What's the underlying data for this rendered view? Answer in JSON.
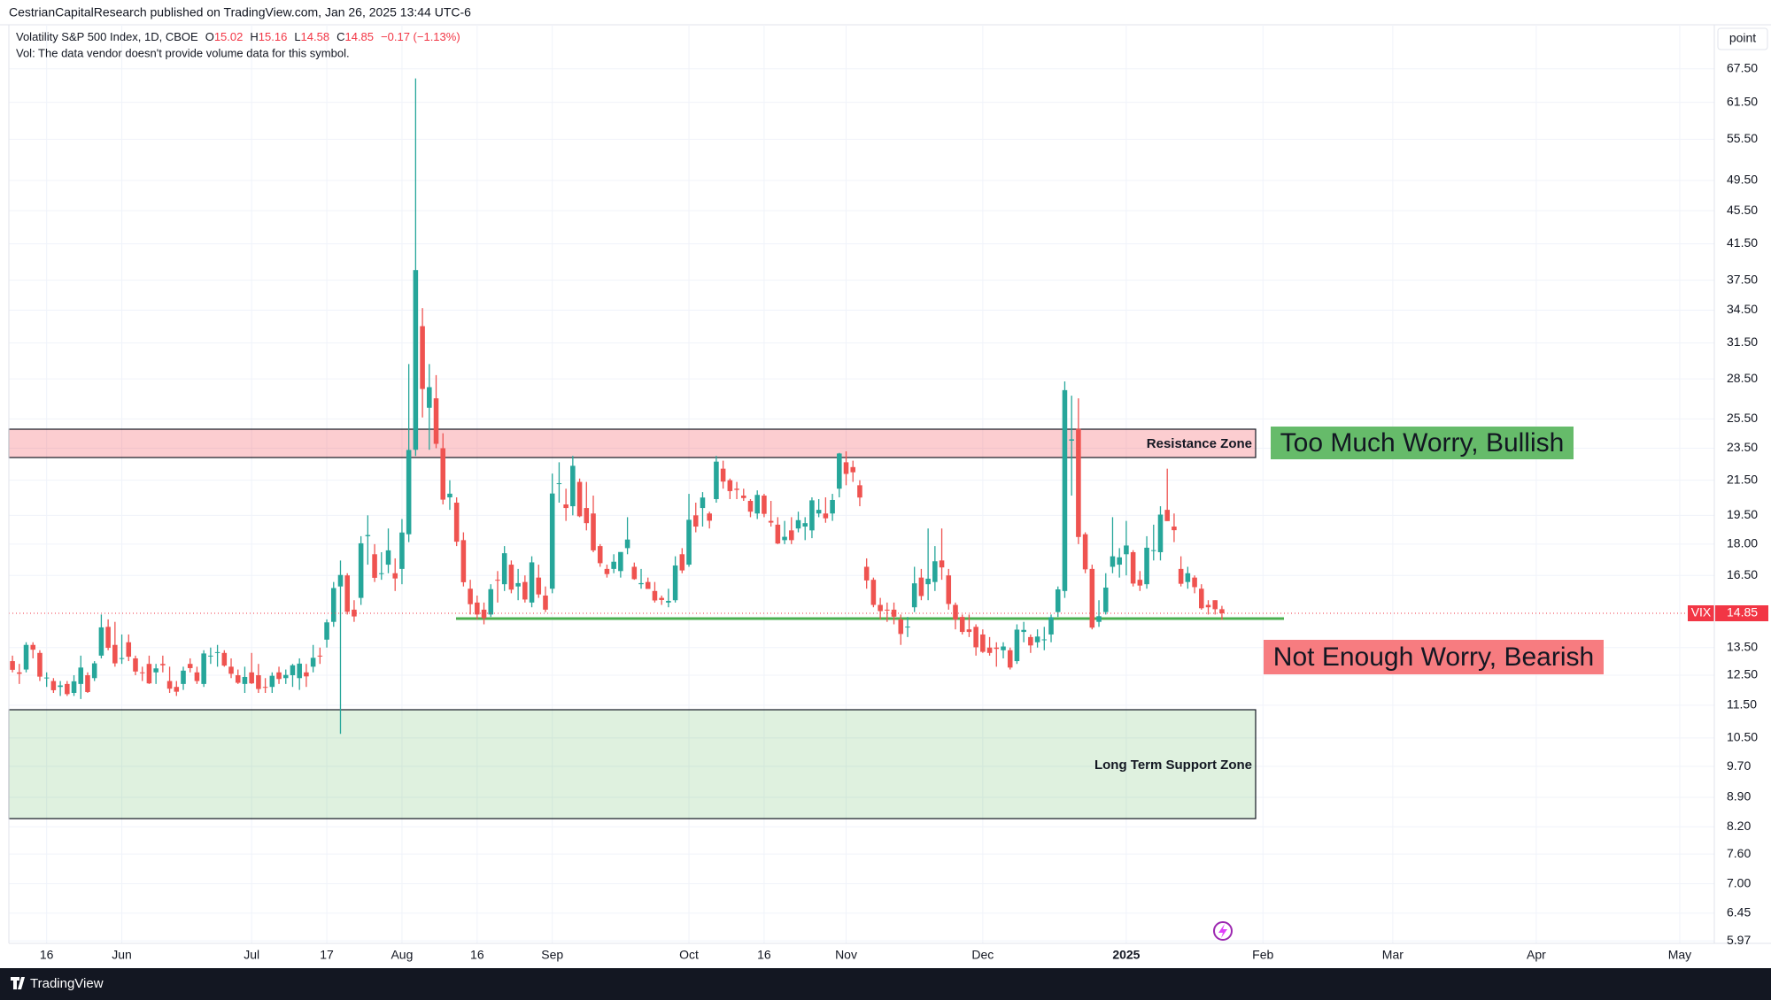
{
  "page": {
    "published": "CestrianCapitalResearch published on TradingView.com, Jan 26, 2025 13:44 UTC-6",
    "footer": "TradingView"
  },
  "chart_data": {
    "type": "candlestick",
    "legend": {
      "name": "Volatility S&P 500 Index, 1D, CBOE",
      "ohlc_labels": [
        "O",
        "H",
        "L",
        "C"
      ],
      "change": "−0.17 (−1.13%)",
      "volume_note": "Vol: The data vendor doesn't provide volume data for this symbol."
    },
    "y_unit_label": "point",
    "symbol": "VIX",
    "log_scale": true,
    "grid": true,
    "price_line_color": "#f23645",
    "ylim": [
      5.93,
      76.3
    ],
    "yticks": [
      {
        "value": 67.5,
        "label": "67.50"
      },
      {
        "value": 61.5,
        "label": "61.50"
      },
      {
        "value": 55.5,
        "label": "55.50"
      },
      {
        "value": 49.5,
        "label": "49.50"
      },
      {
        "value": 45.5,
        "label": "45.50"
      },
      {
        "value": 41.5,
        "label": "41.50"
      },
      {
        "value": 37.5,
        "label": "37.50"
      },
      {
        "value": 34.5,
        "label": "34.50"
      },
      {
        "value": 31.5,
        "label": "31.50"
      },
      {
        "value": 28.5,
        "label": "28.50"
      },
      {
        "value": 25.5,
        "label": "25.50"
      },
      {
        "value": 23.5,
        "label": "23.50"
      },
      {
        "value": 21.5,
        "label": "21.50"
      },
      {
        "value": 19.5,
        "label": "19.50"
      },
      {
        "value": 18.0,
        "label": "18.00"
      },
      {
        "value": 16.5,
        "label": "16.50"
      },
      {
        "value": 13.5,
        "label": "13.50"
      },
      {
        "value": 12.5,
        "label": "12.50"
      },
      {
        "value": 11.5,
        "label": "11.50"
      },
      {
        "value": 10.5,
        "label": "10.50"
      },
      {
        "value": 9.7,
        "label": "9.70"
      },
      {
        "value": 8.9,
        "label": "8.90"
      },
      {
        "value": 8.2,
        "label": "8.20"
      },
      {
        "value": 7.6,
        "label": "7.60"
      },
      {
        "value": 7.0,
        "label": "7.00"
      },
      6.45,
      5.97
    ],
    "xlim": [
      -0.53,
      249.06
    ],
    "xticks": [
      {
        "value": 5,
        "label": "16"
      },
      {
        "value": 16,
        "label": "Jun"
      },
      {
        "value": 35,
        "label": "Jul"
      },
      {
        "value": 46,
        "label": "17"
      },
      {
        "value": 57,
        "label": "Aug"
      },
      {
        "value": 68,
        "label": "16"
      },
      {
        "value": 79,
        "label": "Sep"
      },
      {
        "value": 99,
        "label": "Oct"
      },
      {
        "value": 110,
        "label": "16"
      },
      {
        "value": 122,
        "label": "Nov"
      },
      {
        "value": 142,
        "label": "Dec"
      },
      {
        "value": 163,
        "label": "2025"
      },
      {
        "value": 183,
        "label": "Feb"
      },
      {
        "value": 202,
        "label": "Mar"
      },
      {
        "value": 223,
        "label": "Apr"
      },
      {
        "value": 244,
        "label": "May"
      }
    ],
    "annotations": {
      "resistance": "Resistance Zone",
      "support": "Long Term Support Zone",
      "bullish": "Too Much Worry, Bullish",
      "bearish": "Not Enough Worry, Bearish"
    },
    "series": [
      {
        "name": "VIX",
        "up_color": "#26a69a",
        "down_color": "#ef5350",
        "open": [
          13.0,
          12.6,
          12.7,
          13.6,
          13.3,
          12.4,
          12.3,
          12.1,
          12.2,
          11.9,
          12.2,
          12.5,
          12.4,
          13.2,
          14.3,
          13.6,
          13.1,
          13.7,
          13.1,
          12.6,
          12.9,
          12.6,
          12.9,
          12.3,
          12.1,
          12.2,
          12.9,
          12.6,
          12.2,
          13.2,
          13.3,
          13.3,
          12.8,
          12.5,
          12.2,
          12.6,
          12.5,
          12.1,
          12.1,
          12.6,
          12.4,
          12.5,
          12.4,
          12.6,
          12.8,
          13.2,
          13.8,
          14.5,
          16.0,
          16.5,
          15.0,
          15.5,
          18.4,
          17.5,
          16.6,
          17.0,
          16.6,
          16.8,
          18.5,
          23.4,
          33.0,
          26.3,
          27.0,
          23.5,
          20.5,
          20.2,
          18.2,
          15.9,
          15.3,
          15.0,
          14.8,
          16.3,
          16.1,
          17.0,
          16.0,
          16.2,
          15.3,
          16.4,
          15.6,
          15.9,
          21.3,
          20.1,
          20.0,
          21.4,
          19.9,
          19.6,
          17.9,
          16.8,
          16.8,
          16.7,
          17.8,
          16.9,
          16.1,
          16.2,
          15.8,
          15.5,
          15.3,
          15.4,
          17.5,
          17.0,
          19.5,
          19.9,
          19.6,
          20.4,
          22.2,
          21.5,
          21.0,
          20.6,
          20.3,
          19.6,
          20.6,
          19.2,
          19.0,
          18.2,
          18.7,
          18.8,
          18.9,
          18.7,
          19.6,
          19.6,
          19.6,
          21.0,
          22.6,
          22.3,
          21.2,
          16.9,
          16.3,
          15.2,
          15.0,
          15.0,
          14.6,
          14.3,
          15.1,
          16.4,
          16.1,
          16.2,
          17.2,
          16.5,
          15.2,
          14.7,
          14.2,
          14.3,
          14.0,
          13.5,
          13.5,
          13.4,
          13.4,
          13.0,
          14.1,
          13.9,
          13.7,
          13.8,
          14.0,
          14.9,
          15.8,
          24.0,
          24.8,
          18.5,
          16.8,
          14.5,
          14.9,
          16.9,
          17.0,
          17.5,
          17.6,
          16.3,
          16.1,
          17.7,
          17.6,
          19.8,
          18.9,
          16.8,
          16.2,
          16.4,
          15.9,
          15.2,
          15.4,
          15.02
        ],
        "high": [
          13.2,
          12.9,
          13.7,
          13.7,
          13.4,
          12.6,
          12.4,
          12.3,
          12.3,
          12.5,
          13.2,
          12.6,
          13.0,
          14.8,
          14.6,
          14.5,
          14.0,
          14.0,
          13.2,
          12.8,
          13.2,
          12.9,
          13.2,
          12.8,
          12.3,
          12.8,
          13.1,
          12.8,
          13.4,
          13.5,
          13.6,
          13.4,
          13.1,
          12.7,
          12.8,
          13.3,
          12.9,
          12.4,
          12.6,
          12.8,
          12.7,
          12.9,
          13.1,
          12.9,
          13.6,
          13.5,
          14.6,
          16.2,
          17.2,
          16.6,
          15.4,
          18.4,
          19.5,
          18.0,
          17.6,
          18.8,
          17.3,
          19.3,
          29.7,
          65.73,
          34.7,
          29.7,
          28.8,
          24.5,
          21.5,
          20.5,
          18.6,
          16.3,
          15.6,
          15.3,
          16.1,
          16.7,
          17.9,
          17.2,
          16.8,
          16.5,
          17.4,
          17.0,
          16.0,
          21.9,
          22.6,
          21.0,
          23.0,
          21.6,
          21.4,
          20.6,
          18.0,
          17.0,
          17.5,
          17.6,
          19.4,
          17.1,
          16.8,
          16.4,
          16.2,
          15.6,
          15.9,
          17.4,
          17.8,
          20.7,
          20.2,
          20.8,
          19.7,
          23.0,
          22.7,
          21.6,
          21.4,
          21.0,
          20.4,
          20.9,
          20.7,
          20.3,
          19.4,
          19.2,
          19.4,
          19.7,
          19.4,
          20.5,
          20.4,
          20.5,
          20.7,
          23.2,
          23.3,
          22.7,
          21.5,
          17.3,
          16.4,
          15.5,
          15.3,
          15.3,
          14.8,
          14.7,
          16.9,
          16.8,
          18.8,
          17.9,
          18.8,
          16.8,
          15.3,
          14.8,
          14.8,
          14.4,
          14.2,
          13.9,
          13.7,
          13.7,
          13.5,
          14.4,
          14.5,
          14.0,
          14.2,
          14.3,
          14.8,
          16.0,
          28.3,
          27.2,
          27.0,
          18.6,
          17.0,
          15.4,
          16.6,
          19.4,
          17.8,
          19.2,
          17.7,
          16.7,
          18.4,
          19.0,
          20.0,
          22.2,
          19.6,
          17.4,
          16.9,
          16.5,
          16.1,
          15.4,
          15.4,
          15.16
        ],
        "low": [
          12.6,
          12.2,
          12.6,
          13.1,
          12.3,
          12.1,
          11.9,
          11.8,
          11.8,
          11.8,
          11.7,
          11.9,
          12.3,
          13.1,
          13.4,
          12.8,
          12.9,
          13.0,
          12.5,
          12.3,
          12.2,
          12.2,
          12.6,
          11.9,
          11.8,
          12.0,
          12.6,
          12.2,
          12.1,
          12.9,
          12.8,
          12.8,
          12.4,
          12.2,
          11.9,
          12.2,
          11.9,
          11.9,
          11.9,
          12.2,
          12.2,
          12.1,
          12.0,
          12.1,
          12.6,
          12.9,
          13.5,
          14.3,
          10.62,
          14.8,
          14.5,
          15.2,
          17.0,
          16.2,
          16.3,
          16.6,
          15.8,
          16.1,
          18.1,
          23.0,
          25.6,
          23.4,
          23.5,
          20.1,
          19.8,
          17.9,
          16.0,
          14.8,
          14.6,
          14.4,
          14.7,
          15.3,
          15.8,
          15.7,
          15.4,
          15.3,
          15.1,
          15.5,
          14.9,
          15.7,
          20.2,
          19.2,
          19.5,
          19.4,
          18.7,
          17.6,
          16.9,
          16.4,
          16.6,
          16.4,
          17.5,
          16.3,
          15.9,
          15.9,
          15.3,
          15.2,
          15.1,
          15.3,
          16.6,
          16.9,
          18.6,
          18.9,
          18.8,
          20.2,
          21.0,
          20.4,
          20.4,
          20.3,
          19.4,
          19.3,
          19.4,
          18.9,
          18.0,
          18.0,
          18.0,
          18.6,
          18.2,
          18.3,
          19.4,
          19.1,
          19.2,
          20.5,
          21.2,
          21.4,
          20.0,
          15.9,
          15.1,
          14.6,
          14.5,
          14.4,
          13.6,
          13.9,
          14.9,
          15.4,
          15.4,
          15.8,
          16.3,
          15.0,
          14.2,
          14.0,
          13.9,
          13.2,
          13.3,
          13.2,
          12.8,
          13.1,
          12.7,
          12.9,
          13.7,
          13.3,
          13.5,
          13.4,
          13.7,
          14.7,
          15.5,
          20.6,
          18.0,
          16.6,
          14.2,
          14.3,
          14.8,
          16.6,
          16.4,
          16.5,
          16.0,
          15.8,
          15.9,
          17.2,
          17.2,
          19.2,
          18.1,
          16.0,
          15.9,
          15.7,
          15.0,
          14.8,
          14.8,
          14.58
        ],
        "close": [
          12.69,
          12.55,
          13.6,
          13.42,
          12.45,
          12.42,
          11.99,
          12.15,
          11.86,
          12.29,
          12.77,
          11.93,
          12.92,
          14.28,
          13.49,
          12.92,
          13.11,
          13.16,
          12.63,
          12.58,
          12.22,
          12.74,
          12.85,
          12.04,
          11.94,
          12.66,
          12.75,
          12.3,
          13.28,
          13.2,
          13.33,
          12.84,
          12.55,
          12.24,
          12.44,
          12.22,
          12.03,
          12.09,
          12.48,
          12.37,
          12.51,
          12.85,
          12.91,
          12.46,
          13.12,
          13.19,
          14.48,
          15.93,
          16.52,
          14.91,
          14.72,
          18.04,
          18.46,
          16.39,
          16.6,
          17.69,
          16.36,
          18.59,
          23.39,
          38.57,
          27.71,
          27.85,
          23.79,
          20.37,
          20.71,
          18.12,
          16.19,
          15.23,
          14.8,
          14.65,
          15.88,
          16.27,
          17.55,
          15.86,
          16.15,
          15.43,
          17.11,
          15.65,
          15.0,
          20.72,
          21.32,
          19.9,
          22.38,
          19.45,
          19.08,
          17.69,
          17.07,
          16.56,
          17.14,
          17.61,
          18.23,
          16.33,
          16.15,
          15.89,
          15.39,
          15.41,
          15.37,
          16.96,
          16.73,
          19.26,
          18.9,
          20.49,
          19.21,
          22.64,
          21.42,
          20.86,
          20.93,
          20.46,
          19.7,
          20.64,
          19.58,
          19.11,
          18.03,
          18.37,
          18.2,
          19.24,
          19.08,
          20.33,
          19.8,
          19.34,
          20.35,
          23.16,
          21.88,
          21.98,
          20.49,
          16.27,
          15.2,
          14.94,
          14.97,
          14.71,
          14.02,
          14.31,
          16.14,
          15.58,
          16.35,
          17.16,
          16.87,
          15.24,
          14.6,
          14.1,
          14.1,
          13.51,
          13.34,
          13.3,
          13.45,
          13.54,
          12.77,
          14.19,
          14.18,
          13.58,
          13.92,
          13.81,
          14.69,
          15.87,
          27.62,
          24.09,
          18.36,
          16.78,
          14.27,
          14.73,
          15.95,
          17.4,
          17.35,
          17.93,
          16.13,
          16.04,
          17.82,
          17.7,
          19.54,
          19.19,
          18.71,
          16.12,
          16.6,
          15.97,
          15.06,
          15.1,
          15.02,
          14.85
        ]
      }
    ]
  }
}
